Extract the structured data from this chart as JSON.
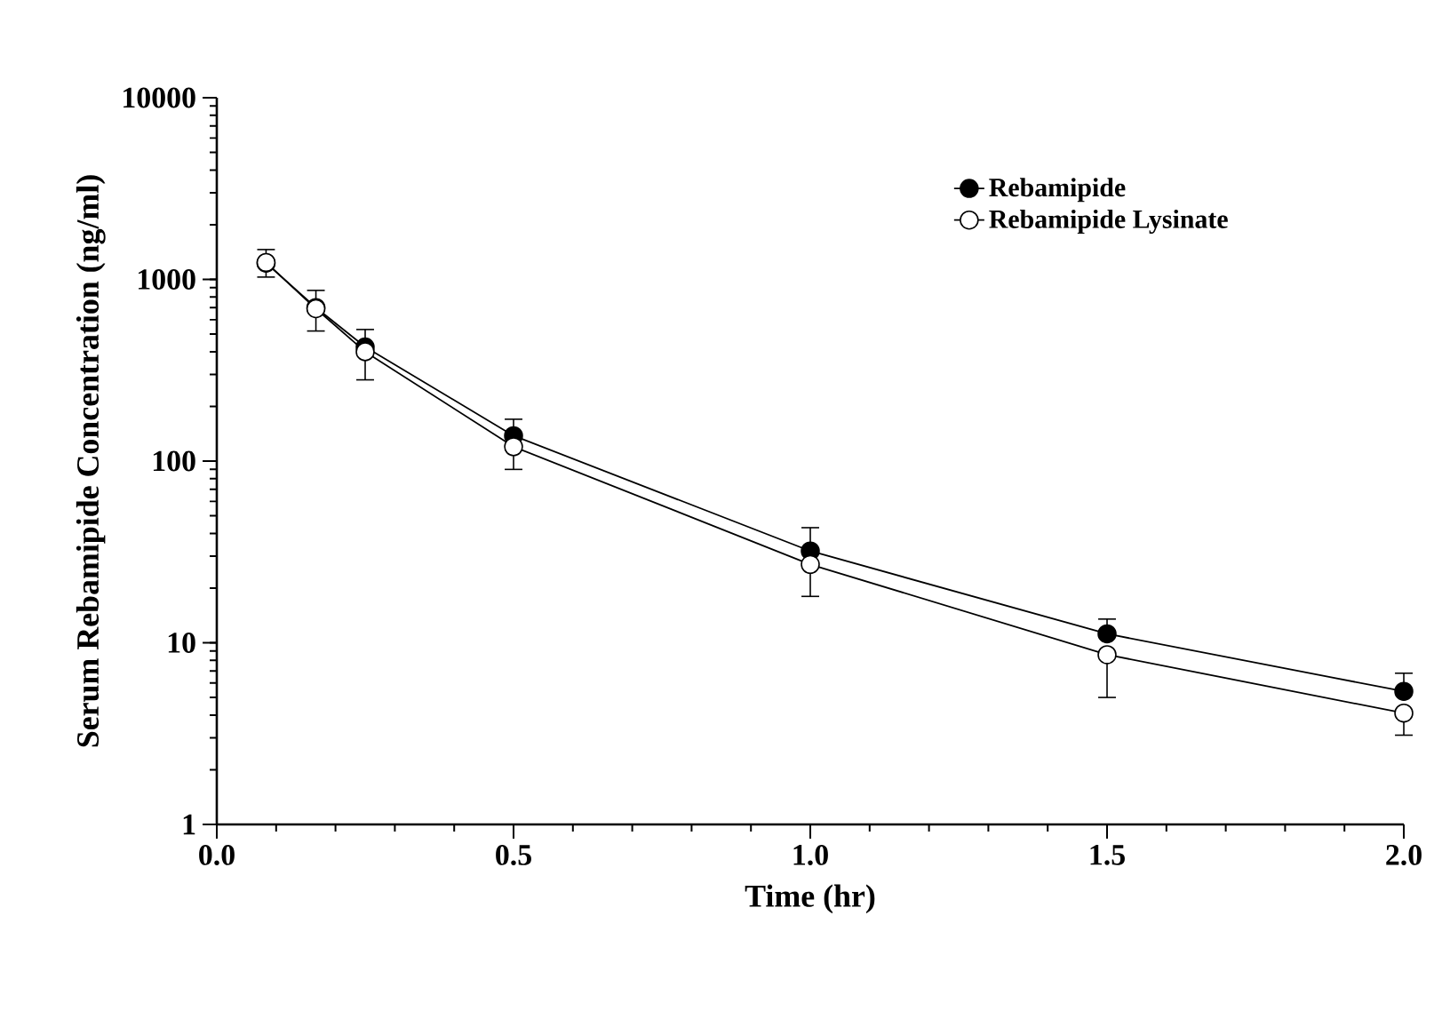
{
  "chart_data": {
    "type": "line",
    "xlabel": "Time (hr)",
    "ylabel": "Serum Rebamipide Concentration (ng/ml)",
    "x": [
      0.083,
      0.167,
      0.25,
      0.5,
      1.0,
      1.5,
      2.0
    ],
    "series": [
      {
        "name": "Rebamipide",
        "color": "#000000",
        "values": [
          1230,
          700,
          425,
          138,
          32,
          11.2,
          5.4
        ],
        "errors": [
          [
            1230,
            1460
          ],
          [
            700,
            870
          ],
          [
            425,
            530
          ],
          [
            138,
            170
          ],
          [
            32,
            43
          ],
          [
            11.2,
            13.5
          ],
          [
            5.4,
            6.8
          ]
        ]
      },
      {
        "name": "Rebamipide Lysinate",
        "color": "#ffffff",
        "values": [
          1240,
          690,
          400,
          120,
          27,
          8.6,
          4.1
        ],
        "errors": [
          [
            1030,
            1240
          ],
          [
            520,
            690
          ],
          [
            280,
            400
          ],
          [
            90,
            120
          ],
          [
            18,
            27
          ],
          [
            5,
            8.6
          ],
          [
            3.1,
            4.1
          ]
        ]
      }
    ],
    "xlim": [
      0,
      2
    ],
    "ylim": [
      1,
      10000
    ],
    "xticks": [
      {
        "value": 0,
        "label": "0.0"
      },
      {
        "value": 0.5,
        "label": "0.5"
      },
      {
        "value": 1,
        "label": "1.0"
      },
      {
        "value": 1.5,
        "label": "1.5"
      },
      {
        "value": 2,
        "label": "2.0"
      }
    ],
    "yticks": [
      1,
      10,
      100,
      1000,
      10000
    ],
    "log": "y",
    "grid": false,
    "legend": "top right",
    "marker": "circle",
    "line_style": "solid"
  }
}
